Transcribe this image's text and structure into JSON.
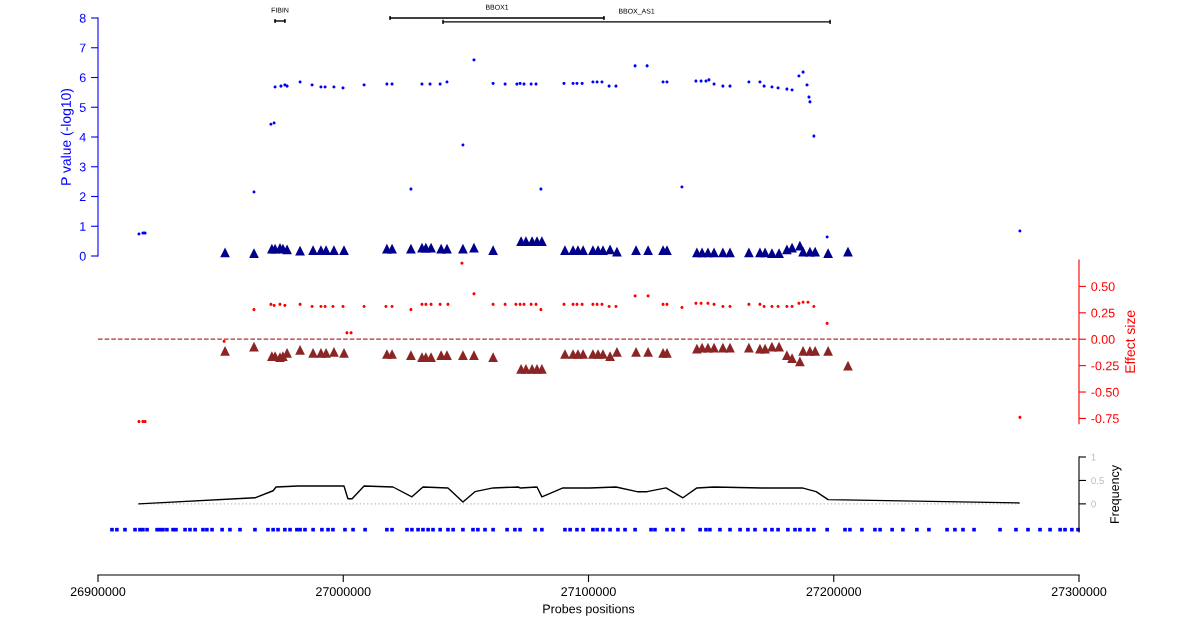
{
  "chart_data": [
    {
      "type": "scatter",
      "ylabel": "P value (-log10)",
      "xlim": [
        26900000,
        27300000
      ],
      "ylim": [
        0,
        8
      ],
      "yticks": [
        0,
        1,
        2,
        3,
        4,
        5,
        6,
        7,
        8
      ],
      "tick_labels": "y",
      "grid": false,
      "legend": false,
      "series": [
        {
          "type": "line",
          "name": "FIBIN",
          "color": "#000000",
          "x": [
            26972200,
            26976200
          ],
          "values": [
            7.9,
            7.9
          ]
        },
        {
          "type": "line",
          "name": "BBOX1",
          "color": "#000000",
          "x": [
            27019100,
            27106300
          ],
          "values": [
            8.0,
            8.0
          ]
        },
        {
          "type": "line",
          "name": "BBOX_AS1",
          "color": "#000000",
          "x": [
            27040700,
            27198500
          ],
          "values": [
            7.87,
            7.87
          ]
        },
        {
          "type": "scatter",
          "marker": "circle",
          "color": "#0000ff",
          "x": [
            26916700,
            26918300,
            26919200,
            26963600,
            26970500,
            26971800,
            26972200,
            26974600,
            26976200,
            26977100,
            26982400,
            26987300,
            26990900,
            26992600,
            26996200,
            26999900,
            27008500,
            27017800,
            27019900,
            27027600,
            27032100,
            27035400,
            27039500,
            27042300,
            27048800,
            27053300,
            27061100,
            27066000,
            27070800,
            27072100,
            27073700,
            27076600,
            27078600,
            27080600,
            27090000,
            27093700,
            27095300,
            27097400,
            27101800,
            27103500,
            27105500,
            27108400,
            27111200,
            27119000,
            27123900,
            27130400,
            27132000,
            27138100,
            27143800,
            27145900,
            27147900,
            27149100,
            27151200,
            27154800,
            27157700,
            27165400,
            27169900,
            27171600,
            27174800,
            27177300,
            27180900,
            27183000,
            27185800,
            27187500,
            27189100,
            27189900,
            27190300,
            27191900,
            27197300,
            27275900
          ],
          "values": [
            0.74,
            0.77,
            0.77,
            2.15,
            4.43,
            4.47,
            5.68,
            5.71,
            5.75,
            5.71,
            5.85,
            5.75,
            5.68,
            5.68,
            5.68,
            5.65,
            5.75,
            5.78,
            5.78,
            2.25,
            5.78,
            5.78,
            5.78,
            5.85,
            3.73,
            6.59,
            5.8,
            5.78,
            5.78,
            5.8,
            5.78,
            5.78,
            5.78,
            2.25,
            5.8,
            5.8,
            5.8,
            5.8,
            5.85,
            5.85,
            5.85,
            5.71,
            5.71,
            6.39,
            6.39,
            5.85,
            5.85,
            2.32,
            5.88,
            5.88,
            5.88,
            5.92,
            5.78,
            5.71,
            5.71,
            5.85,
            5.85,
            5.71,
            5.68,
            5.65,
            5.61,
            5.58,
            6.05,
            6.18,
            5.75,
            5.34,
            5.18,
            4.03,
            0.64,
            0.84
          ]
        },
        {
          "type": "scatter",
          "marker": "triangle",
          "color": "#00008b",
          "x": [
            26951800,
            26963600,
            26970900,
            26972200,
            26974200,
            26975400,
            26977100,
            26982400,
            26987700,
            26990900,
            26993000,
            26996200,
            27000300,
            27017800,
            27019900,
            27027600,
            27032100,
            27033700,
            27035800,
            27039900,
            27042300,
            27048800,
            27053300,
            27061100,
            27072500,
            27074500,
            27077000,
            27079000,
            27081000,
            27090400,
            27093700,
            27095700,
            27097800,
            27101800,
            27103900,
            27105900,
            27108800,
            27111600,
            27119400,
            27124300,
            27130400,
            27132000,
            27144200,
            27146300,
            27148700,
            27151200,
            27154800,
            27157700,
            27165400,
            27169900,
            27172000,
            27174800,
            27177700,
            27180900,
            27183000,
            27186200,
            27187500,
            27190300,
            27192400,
            27197700,
            27205800
          ],
          "values": [
            0.12,
            0.1,
            0.25,
            0.25,
            0.27,
            0.25,
            0.22,
            0.18,
            0.2,
            0.2,
            0.2,
            0.2,
            0.2,
            0.25,
            0.25,
            0.25,
            0.28,
            0.28,
            0.28,
            0.25,
            0.25,
            0.25,
            0.28,
            0.2,
            0.5,
            0.5,
            0.5,
            0.5,
            0.5,
            0.2,
            0.2,
            0.2,
            0.2,
            0.2,
            0.2,
            0.2,
            0.22,
            0.15,
            0.2,
            0.2,
            0.2,
            0.2,
            0.12,
            0.12,
            0.12,
            0.12,
            0.12,
            0.12,
            0.12,
            0.12,
            0.12,
            0.1,
            0.1,
            0.22,
            0.28,
            0.35,
            0.15,
            0.15,
            0.15,
            0.1,
            0.15
          ]
        }
      ]
    },
    {
      "type": "scatter",
      "y2label": "Effect size",
      "xlim": [
        26900000,
        27300000
      ],
      "y2lim": [
        -0.8,
        0.75
      ],
      "y2ticks": [
        {
          "value": -0.75,
          "label": "-0.75"
        },
        {
          "value": -0.5,
          "label": "-0.50"
        },
        {
          "value": -0.25,
          "label": "-0.25"
        },
        {
          "value": 0,
          "label": "0.00"
        },
        {
          "value": 0.25,
          "label": "0.25"
        },
        {
          "value": 0.5,
          "label": "0.50"
        }
      ],
      "tick_labels": "y2",
      "grid": false,
      "legend": false,
      "ref_lines": [
        {
          "axis": "y2",
          "value": 0,
          "color": "#b03030",
          "line_style": "dashed"
        }
      ],
      "series": [
        {
          "type": "scatter",
          "axis": "y2",
          "marker": "circle",
          "color": "#ff0000",
          "x": [
            26916700,
            26918300,
            26919200,
            26951400,
            26963600,
            26970500,
            26971800,
            26974200,
            26976200,
            26982400,
            26987300,
            26990900,
            26992600,
            26995800,
            26999900,
            27001500,
            27003200,
            27008500,
            27017400,
            27019900,
            27027600,
            27032100,
            27033700,
            27035800,
            27039500,
            27042700,
            27048400,
            27053300,
            27061100,
            27066000,
            27070400,
            27072100,
            27073700,
            27076600,
            27078600,
            27080600,
            27090000,
            27093700,
            27095300,
            27097400,
            27101800,
            27103500,
            27105500,
            27108400,
            27111200,
            27119000,
            27124300,
            27130400,
            27132000,
            27138100,
            27143800,
            27145900,
            27148700,
            27151200,
            27154800,
            27157700,
            27165400,
            27169900,
            27171600,
            27174800,
            27177300,
            27180900,
            27183000,
            27185800,
            27187500,
            27189500,
            27191900,
            27197300,
            27275900
          ],
          "values": [
            -0.78,
            -0.78,
            -0.78,
            -0.02,
            0.28,
            0.33,
            0.32,
            0.33,
            0.32,
            0.33,
            0.31,
            0.31,
            0.31,
            0.31,
            0.31,
            0.06,
            0.06,
            0.31,
            0.31,
            0.31,
            0.28,
            0.33,
            0.33,
            0.33,
            0.33,
            0.33,
            0.72,
            0.43,
            0.33,
            0.33,
            0.33,
            0.33,
            0.33,
            0.33,
            0.33,
            0.28,
            0.33,
            0.33,
            0.33,
            0.33,
            0.33,
            0.33,
            0.33,
            0.31,
            0.31,
            0.41,
            0.41,
            0.33,
            0.33,
            0.3,
            0.34,
            0.34,
            0.34,
            0.33,
            0.31,
            0.31,
            0.33,
            0.33,
            0.31,
            0.31,
            0.31,
            0.31,
            0.31,
            0.34,
            0.35,
            0.35,
            0.31,
            0.15,
            -0.74
          ]
        },
        {
          "type": "scatter",
          "axis": "y2",
          "marker": "triangle",
          "color": "#8b2525",
          "x": [
            26951800,
            26963600,
            26970900,
            26972200,
            26974200,
            26975400,
            26977100,
            26982400,
            26987700,
            26990900,
            26993000,
            26996200,
            27000300,
            27017800,
            27019900,
            27027600,
            27032100,
            27033700,
            27035800,
            27039900,
            27042300,
            27048800,
            27053300,
            27061100,
            27072500,
            27074500,
            27077000,
            27079000,
            27081000,
            27090400,
            27093700,
            27095700,
            27097800,
            27101800,
            27103900,
            27105900,
            27108800,
            27111600,
            27119400,
            27124300,
            27130400,
            27132000,
            27144200,
            27146300,
            27148700,
            27151200,
            27154800,
            27157700,
            27165400,
            27169900,
            27172000,
            27174800,
            27177700,
            27180900,
            27183000,
            27186200,
            27187500,
            27190300,
            27192400,
            27197700,
            27205800
          ],
          "values": [
            -0.11,
            -0.07,
            -0.16,
            -0.16,
            -0.17,
            -0.16,
            -0.13,
            -0.1,
            -0.13,
            -0.13,
            -0.13,
            -0.12,
            -0.13,
            -0.14,
            -0.14,
            -0.15,
            -0.17,
            -0.17,
            -0.17,
            -0.15,
            -0.15,
            -0.15,
            -0.15,
            -0.17,
            -0.28,
            -0.28,
            -0.28,
            -0.28,
            -0.28,
            -0.14,
            -0.14,
            -0.14,
            -0.14,
            -0.14,
            -0.14,
            -0.14,
            -0.16,
            -0.12,
            -0.12,
            -0.12,
            -0.13,
            -0.13,
            -0.09,
            -0.08,
            -0.08,
            -0.08,
            -0.08,
            -0.08,
            -0.08,
            -0.09,
            -0.09,
            -0.07,
            -0.07,
            -0.15,
            -0.18,
            -0.21,
            -0.11,
            -0.11,
            -0.11,
            -0.11,
            -0.25
          ]
        }
      ]
    },
    {
      "type": "line",
      "y2label": "Frequency",
      "xlabel": "Probes positions",
      "xlim": [
        26900000,
        27300000
      ],
      "xticks": [
        26900000,
        27000000,
        27100000,
        27200000,
        27300000
      ],
      "y2lim": [
        -0.6,
        1
      ],
      "y2ticks": [
        0,
        0.5,
        1
      ],
      "grid": false,
      "legend": false,
      "series": [
        {
          "axis": "y2",
          "color": "#bbbbbb",
          "line_style": "dotted",
          "x": [
            26916700,
            27275500
          ],
          "values": [
            0,
            0
          ]
        },
        {
          "axis": "y2",
          "color": "#000000",
          "line_style": "solid",
          "x": [
            26916700,
            26964000,
            26971400,
            26972600,
            26981600,
            27000300,
            27001900,
            27003600,
            27008500,
            27020300,
            27028000,
            27032500,
            27042700,
            27048800,
            27053700,
            27061100,
            27071300,
            27072100,
            27079000,
            27081000,
            27089600,
            27100600,
            27111200,
            27119800,
            27123900,
            27131600,
            27138500,
            27144200,
            27151200,
            27170700,
            27187100,
            27192800,
            27197700,
            27275500
          ],
          "values": [
            0,
            0.13,
            0.28,
            0.36,
            0.38,
            0.38,
            0.11,
            0.11,
            0.38,
            0.36,
            0.15,
            0.36,
            0.34,
            0.04,
            0.26,
            0.34,
            0.36,
            0.34,
            0.36,
            0.15,
            0.34,
            0.34,
            0.36,
            0.26,
            0.26,
            0.34,
            0.13,
            0.34,
            0.36,
            0.34,
            0.34,
            0.26,
            0.09,
            0.02
          ]
        },
        {
          "type": "scatter",
          "axis": "y2",
          "marker": "square",
          "color": "#0000ff",
          "x": [
            26905700,
            26907700,
            26911000,
            26915100,
            26917100,
            26918300,
            26920000,
            26924100,
            26925300,
            26926500,
            26928100,
            26930600,
            26931800,
            26935500,
            26937500,
            26939600,
            26942800,
            26944400,
            26946500,
            26950600,
            26953800,
            26957900,
            26964000,
            26969300,
            26971400,
            26973400,
            26976200,
            26978300,
            26981100,
            26982400,
            26984400,
            26987700,
            26991300,
            26993800,
            26995800,
            27000700,
            27004000,
            27008900,
            27017800,
            27019900,
            27026000,
            27028000,
            27030500,
            27032500,
            27034600,
            27036600,
            27039500,
            27042700,
            27044800,
            27048800,
            27052900,
            27054900,
            27057800,
            27061100,
            27066800,
            27070000,
            27072100,
            27078200,
            27081000,
            27090400,
            27092500,
            27095300,
            27097800,
            27101800,
            27103500,
            27105900,
            27108800,
            27112000,
            27114900,
            27119000,
            27125500,
            27127100,
            27132000,
            27134500,
            27138500,
            27145500,
            27147900,
            27149500,
            27153600,
            27157700,
            27161800,
            27165000,
            27167900,
            27172000,
            27174800,
            27177300,
            27181300,
            27184200,
            27186200,
            27189500,
            27191900,
            27197300,
            27204600,
            27206600,
            27211500,
            27216800,
            27218900,
            27223800,
            27228200,
            27233900,
            27238800,
            27246200,
            27249400,
            27252700,
            27257200,
            27267800,
            27274300,
            27279200,
            27284100,
            27288200,
            27292300,
            27294300,
            27297100,
            27299600
          ],
          "values": [
            -0.55,
            -0.55,
            -0.55,
            -0.55,
            -0.55,
            -0.55,
            -0.55,
            -0.55,
            -0.55,
            -0.55,
            -0.55,
            -0.55,
            -0.55,
            -0.55,
            -0.55,
            -0.55,
            -0.55,
            -0.55,
            -0.55,
            -0.55,
            -0.55,
            -0.55,
            -0.55,
            -0.55,
            -0.55,
            -0.55,
            -0.55,
            -0.55,
            -0.55,
            -0.55,
            -0.55,
            -0.55,
            -0.55,
            -0.55,
            -0.55,
            -0.55,
            -0.55,
            -0.55,
            -0.55,
            -0.55,
            -0.55,
            -0.55,
            -0.55,
            -0.55,
            -0.55,
            -0.55,
            -0.55,
            -0.55,
            -0.55,
            -0.55,
            -0.55,
            -0.55,
            -0.55,
            -0.55,
            -0.55,
            -0.55,
            -0.55,
            -0.55,
            -0.55,
            -0.55,
            -0.55,
            -0.55,
            -0.55,
            -0.55,
            -0.55,
            -0.55,
            -0.55,
            -0.55,
            -0.55,
            -0.55,
            -0.55,
            -0.55,
            -0.55,
            -0.55,
            -0.55,
            -0.55,
            -0.55,
            -0.55,
            -0.55,
            -0.55,
            -0.55,
            -0.55,
            -0.55,
            -0.55,
            -0.55,
            -0.55,
            -0.55,
            -0.55,
            -0.55,
            -0.55,
            -0.55,
            -0.55,
            -0.55,
            -0.55,
            -0.55,
            -0.55,
            -0.55,
            -0.55,
            -0.55,
            -0.55,
            -0.55,
            -0.55,
            -0.55,
            -0.55,
            -0.55,
            -0.55,
            -0.55,
            -0.55,
            -0.55,
            -0.55,
            -0.55,
            -0.55,
            -0.55,
            -0.55
          ]
        }
      ]
    }
  ]
}
